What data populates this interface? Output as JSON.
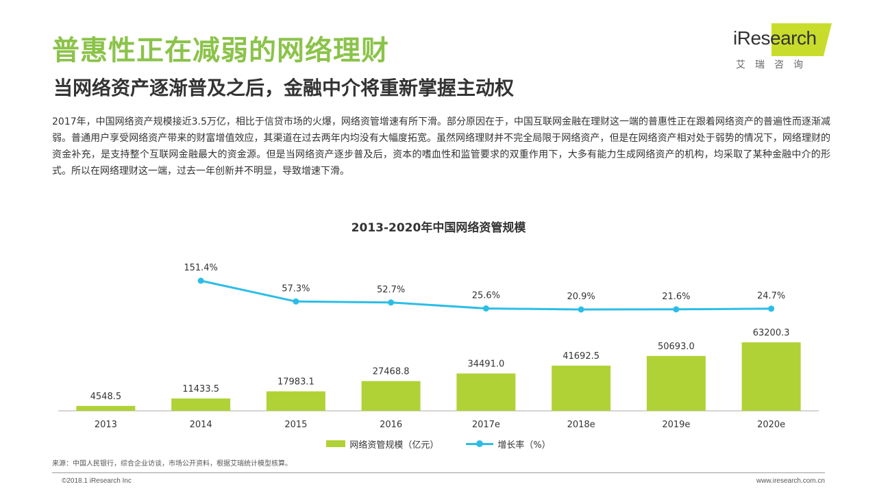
{
  "page": {
    "title": "普惠性正在减弱的网络理财",
    "subtitle": "当网络资产逐渐普及之后，金融中介将重新掌握主动权",
    "body": "2017年，中国网络资产规模接近3.5万亿，相比于信贷市场的火爆，网络资管增速有所下滑。部分原因在于，中国互联网金融在理财这一端的普惠性正在跟着网络资产的普遍性而逐渐减弱。普通用户享受网络资产带来的财富增值效应，其渠道在过去两年内均没有大幅度拓宽。虽然网络理财并不完全局限于网络资产，但是在网络资产相对处于弱势的情况下，网络理财的资金补充，是支持整个互联网金融最大的资金源。但是当网络资产逐步普及后，资本的嗜血性和监管要求的双重作用下，大多有能力生成网络资产的机构，均采取了某种金融中介的形式。所以在网络理财这一端，过去一年创新并不明显，导致增速下滑。",
    "source": "来源：中国人民银行，综合企业访谈，市场公开资料，根据艾瑞统计模型核算。",
    "copyright": "©2018.1 iResearch Inc",
    "website": "www.iresearch.com.cn"
  },
  "logo": {
    "word": "iResearch",
    "cn": "艾瑞咨询",
    "accent_color": "#c8dc2c"
  },
  "chart_data": {
    "type": "bar+line",
    "title": "2013-2020年中国网络资管规模",
    "categories": [
      "2013",
      "2014",
      "2015",
      "2016",
      "2017e",
      "2018e",
      "2019e",
      "2020e"
    ],
    "series": [
      {
        "name": "网络资管规模（亿元）",
        "type": "bar",
        "color": "#b0d236",
        "values": [
          4548.5,
          11433.5,
          17983.1,
          27468.8,
          34491.0,
          41692.5,
          50693.0,
          63200.3
        ],
        "labels": [
          "4548.5",
          "11433.5",
          "17983.1",
          "27468.8",
          "34491.0",
          "41692.5",
          "50693.0",
          "63200.3"
        ]
      },
      {
        "name": "增长率（%）",
        "type": "line",
        "color": "#2bbde6",
        "values": [
          null,
          151.4,
          57.3,
          52.7,
          25.6,
          20.9,
          21.6,
          24.7
        ],
        "labels": [
          "",
          "151.4%",
          "57.3%",
          "52.7%",
          "25.6%",
          "20.9%",
          "21.6%",
          "24.7%"
        ]
      }
    ],
    "grid": false,
    "legend_position": "bottom"
  }
}
